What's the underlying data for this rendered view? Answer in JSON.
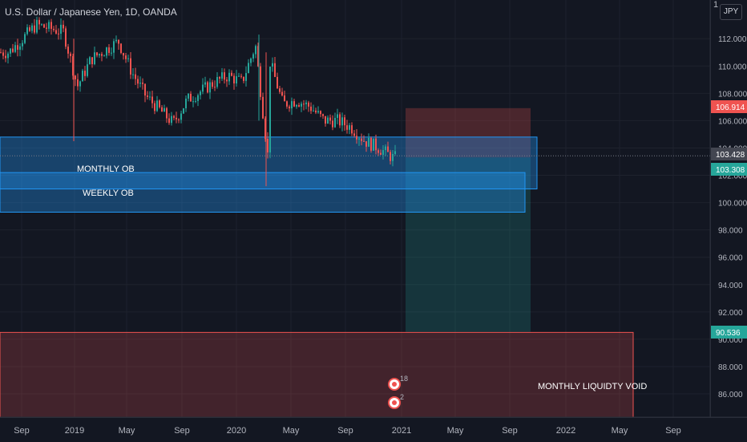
{
  "header": {
    "title": "U.S. Dollar / Japanese Yen, 1D, OANDA",
    "currency_button": "JPY",
    "axis_top_number": "1"
  },
  "chart_data": {
    "type": "candlestick",
    "symbol": "U.S. Dollar / Japanese Yen",
    "interval": "1D",
    "source": "OANDA",
    "y_ticks": [
      "86.000",
      "88.000",
      "90.000",
      "92.000",
      "94.000",
      "96.000",
      "98.000",
      "100.000",
      "102.000",
      "104.000",
      "106.000",
      "108.000",
      "110.000",
      "112.000"
    ],
    "x_ticks": [
      "Sep",
      "2019",
      "May",
      "Sep",
      "2020",
      "May",
      "Sep",
      "2021",
      "May",
      "Sep",
      "2022",
      "May",
      "Sep"
    ],
    "approx_close_path": [
      [
        "2018-08",
        111.0
      ],
      [
        "2018-10",
        113.0
      ],
      [
        "2018-12",
        112.5
      ],
      [
        "2019-01",
        108.5
      ],
      [
        "2019-02",
        110.5
      ],
      [
        "2019-04",
        111.8
      ],
      [
        "2019-05",
        109.5
      ],
      [
        "2019-06",
        107.8
      ],
      [
        "2019-08",
        105.8
      ],
      [
        "2019-09",
        107.5
      ],
      [
        "2019-11",
        108.8
      ],
      [
        "2019-12",
        109.3
      ],
      [
        "2020-01",
        108.8
      ],
      [
        "2020-02",
        111.5
      ],
      [
        "2020-03",
        102.5
      ],
      [
        "2020-03",
        110.5
      ],
      [
        "2020-04",
        107.2
      ],
      [
        "2020-05",
        107.5
      ],
      [
        "2020-06",
        107.0
      ],
      [
        "2020-07",
        106.0
      ],
      [
        "2020-08",
        106.0
      ],
      [
        "2020-09",
        105.5
      ],
      [
        "2020-10",
        104.5
      ],
      [
        "2020-11",
        104.0
      ],
      [
        "2020-12",
        103.3
      ]
    ],
    "price_labels": [
      {
        "value": "106.914",
        "color": "#ef5350"
      },
      {
        "value": "103.428",
        "color": "#434651"
      },
      {
        "value": "103.308",
        "color": "#26a69a"
      },
      {
        "value": "90.536",
        "color": "#26a69a"
      }
    ],
    "zones": [
      {
        "label": "MONTHLY OB",
        "top": 104.8,
        "bottom": 101.0,
        "color": "#2196f3"
      },
      {
        "label": "WEEKLY OB",
        "top": 102.2,
        "bottom": 99.3,
        "color": "#2196f3"
      },
      {
        "label": "MONTHLY LIQUIDTY VOID",
        "top": 90.5,
        "bottom": 84.0,
        "color": "#ef5350"
      }
    ],
    "position": {
      "type": "short",
      "stop": 106.914,
      "entry": 103.308,
      "target": 90.536,
      "current": 103.428
    },
    "event_markers": [
      {
        "label": "18"
      },
      {
        "label": "2"
      }
    ],
    "colors": {
      "up": "#26a69a",
      "down": "#ef5350",
      "background": "#131722",
      "zone_blue": "#2196f3",
      "zone_red": "#ef5350"
    }
  }
}
